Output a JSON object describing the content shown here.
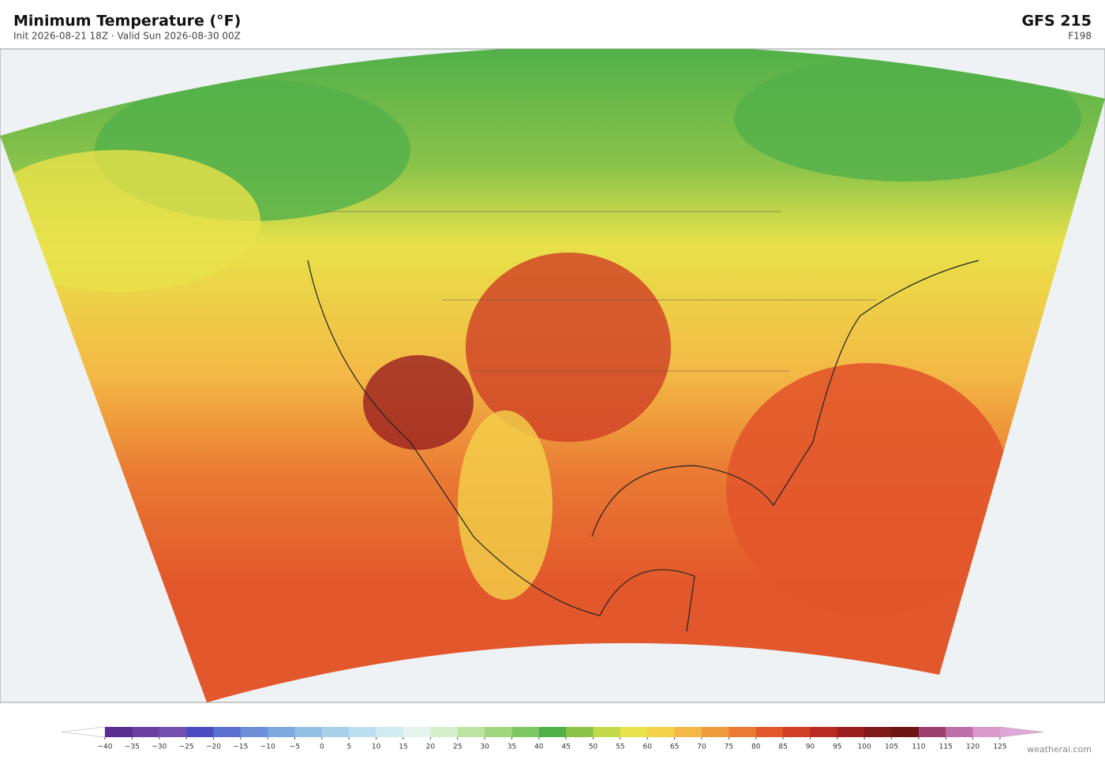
{
  "header": {
    "title": "Minimum Temperature  (°F)",
    "subtitle": "Init 2026-08-21 18Z  ·  Valid Sun 2026-08-30 00Z",
    "model": "GFS  215",
    "forecast_hour": "F198"
  },
  "colorbar": {
    "ticks": [
      {
        "value": -40,
        "label": "−40"
      },
      {
        "value": -35,
        "label": "−35"
      },
      {
        "value": -30,
        "label": "−30"
      },
      {
        "value": -25,
        "label": "−25"
      },
      {
        "value": -20,
        "label": "−20"
      },
      {
        "value": -15,
        "label": "−15"
      },
      {
        "value": -10,
        "label": "−10"
      },
      {
        "value": -5,
        "label": "−5"
      },
      0,
      5,
      10,
      15,
      20,
      25,
      30,
      35,
      40,
      45,
      50,
      55,
      60,
      65,
      70,
      75,
      80,
      85,
      90,
      95,
      100,
      105,
      110,
      115,
      120,
      125
    ],
    "colors": [
      "#5a2d91",
      "#6a3fa0",
      "#7350b0",
      "#4b4bbf",
      "#5a6fd0",
      "#6d8fd8",
      "#7ea8de",
      "#93c0e4",
      "#a8d0ea",
      "#bde0f0",
      "#d2ecf2",
      "#e4f4ec",
      "#d6eecb",
      "#bce3a2",
      "#a0d67e",
      "#7fc765",
      "#52b04a",
      "#8bc34a",
      "#c4d94a",
      "#e8e24a",
      "#f3d24a",
      "#f3b845",
      "#f09a3e",
      "#ea7a34",
      "#e2572b",
      "#d03e25",
      "#b82a22",
      "#9a1f1f",
      "#7f1a1a",
      "#6d1616",
      "#9c4070",
      "#c070a8",
      "#d89ac8"
    ],
    "under_color": "#ffffff",
    "over_color": "#e0a8d8"
  },
  "credit": "weatherai.com"
}
